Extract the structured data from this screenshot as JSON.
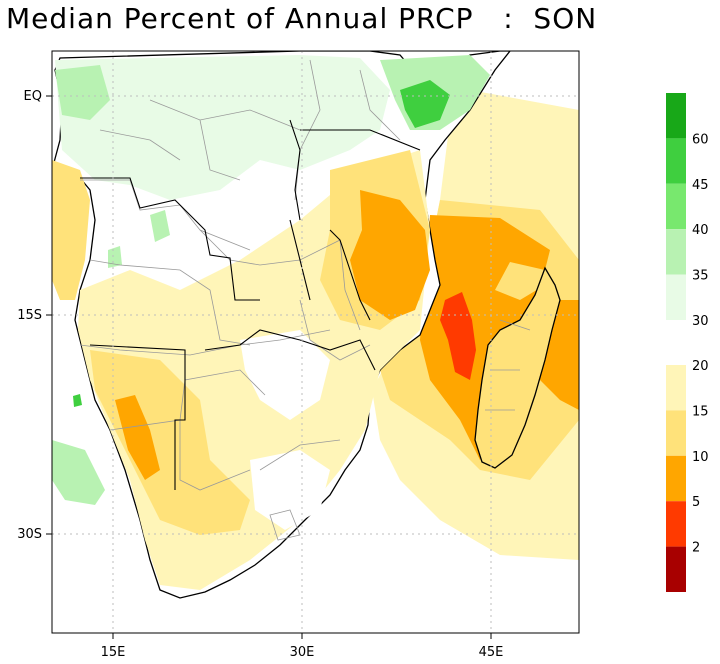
{
  "title": "Median Percent of Annual PRCP   :  SON",
  "lat_labels": [
    "EQ",
    "15S",
    "30S"
  ],
  "lon_labels": [
    "15E",
    "30E",
    "45E"
  ],
  "colorbar": {
    "upper": [
      {
        "label": "30",
        "color": "#e8fbe6"
      },
      {
        "label": "35",
        "color": "#b8f2b2"
      },
      {
        "label": "40",
        "color": "#78e86e"
      },
      {
        "label": "45",
        "color": "#3fcf3f"
      },
      {
        "label": "60",
        "color": "#18a818"
      }
    ],
    "upper_top_color": "#18a818",
    "lower": [
      {
        "label": "20",
        "color": "#fff5b8"
      },
      {
        "label": "15",
        "color": "#ffe27a"
      },
      {
        "label": "10",
        "color": "#ffa600"
      },
      {
        "label": "5",
        "color": "#ff3a00"
      },
      {
        "label": "2",
        "color": "#a80000"
      }
    ]
  },
  "colors": {
    "land": "#ffffff",
    "ocean": "#ffffff",
    "coast": "#000000",
    "admin_borders": "#9a9a9a",
    "gridlines": "#bdbdbd"
  }
}
